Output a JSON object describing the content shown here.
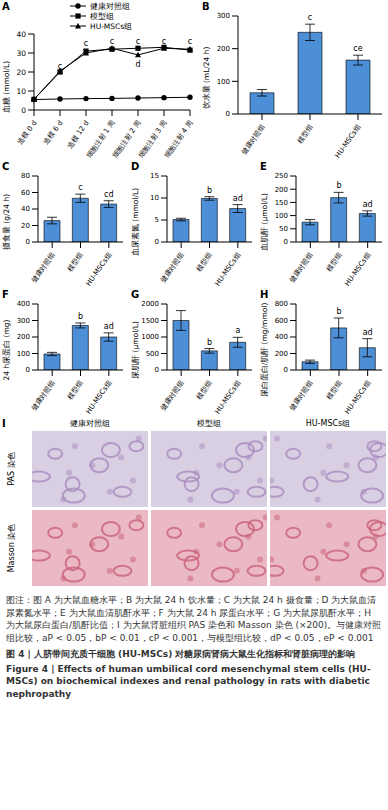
{
  "chart_data": [
    {
      "panel": "A",
      "type": "line",
      "ylabel": "血糖 (mmol/L)",
      "categories": [
        "造模 0 d",
        "造模 6 d",
        "造模 12 d",
        "细胞注射 1 周",
        "细胞注射 2 周",
        "细胞注射 3 周",
        "细胞注射 4 周"
      ],
      "series": [
        {
          "name": "健康对照组",
          "color": "#000000",
          "marker": "circle",
          "values": [
            5.5,
            5.8,
            6.0,
            6.1,
            6.3,
            6.5,
            6.7
          ]
        },
        {
          "name": "模型组",
          "color": "#000000",
          "marker": "square",
          "values": [
            5.6,
            20.0,
            31.0,
            32.0,
            32.5,
            33.0,
            31.5
          ]
        },
        {
          "name": "HU-MSCs组",
          "color": "#000000",
          "marker": "triangle",
          "values": [
            5.6,
            20.5,
            30.0,
            32.5,
            29.0,
            32.5,
            32.0
          ]
        }
      ],
      "annotations": [
        {
          "x": "造模 6 d",
          "y": 23,
          "text": "c"
        },
        {
          "x": "造模 12 d",
          "y": 35,
          "text": "c"
        },
        {
          "x": "细胞注射 1 周",
          "y": 36,
          "text": "c"
        },
        {
          "x": "细胞注射 2 周",
          "y": 36,
          "text": "c"
        },
        {
          "x": "细胞注射 3 周",
          "y": 36,
          "text": "c"
        },
        {
          "x": "细胞注射 4 周",
          "y": 36,
          "text": "c"
        },
        {
          "x": "细胞注射 2 周",
          "y": 24,
          "text": "d"
        }
      ],
      "ylim": [
        0,
        40
      ],
      "yticks": [
        0,
        10,
        20,
        30,
        40
      ],
      "legend": "top"
    },
    {
      "panel": "B",
      "type": "bar",
      "ylabel": "饮水量 (mL/24 h)",
      "categories": [
        "健康对照组",
        "模型组",
        "HU-MSCs组"
      ],
      "values": [
        65,
        250,
        165
      ],
      "errors": [
        10,
        25,
        15
      ],
      "color": "#4d8fd6",
      "annotations": [
        {
          "category": "模型组",
          "text": "c"
        },
        {
          "category": "HU-MSCs组",
          "text": "ce"
        }
      ],
      "ylim": [
        0,
        300
      ],
      "yticks": [
        0,
        100,
        200,
        300
      ]
    },
    {
      "panel": "C",
      "type": "bar",
      "ylabel": "摄食量 (g/24 h)",
      "categories": [
        "健康对照组",
        "模型组",
        "HU-MSCs组"
      ],
      "values": [
        26,
        53,
        46
      ],
      "errors": [
        4,
        5,
        4
      ],
      "color": "#4d8fd6",
      "annotations": [
        {
          "category": "模型组",
          "text": "c"
        },
        {
          "category": "HU-MSCs组",
          "text": "cd"
        }
      ],
      "ylim": [
        0,
        80
      ],
      "yticks": [
        0,
        20,
        40,
        60,
        80
      ]
    },
    {
      "panel": "D",
      "type": "bar",
      "ylabel": "血尿素氮 (mmol/L)",
      "categories": [
        "健康对照组",
        "模型组",
        "HU-MSCs组"
      ],
      "values": [
        5.1,
        9.9,
        7.6
      ],
      "errors": [
        0.3,
        0.4,
        0.9
      ],
      "color": "#4d8fd6",
      "annotations": [
        {
          "category": "模型组",
          "text": "b"
        },
        {
          "category": "HU-MSCs组",
          "text": "ad"
        }
      ],
      "ylim": [
        0,
        15
      ],
      "yticks": [
        0,
        5,
        10,
        15
      ]
    },
    {
      "panel": "E",
      "type": "bar",
      "ylabel": "血肌酐 (μmol/L)",
      "categories": [
        "健康对照组",
        "模型组",
        "HU-MSCs组"
      ],
      "values": [
        75,
        168,
        108
      ],
      "errors": [
        10,
        20,
        10
      ],
      "color": "#4d8fd6",
      "annotations": [
        {
          "category": "模型组",
          "text": "b"
        },
        {
          "category": "HU-MSCs组",
          "text": "ad"
        }
      ],
      "ylim": [
        0,
        250
      ],
      "yticks": [
        0,
        50,
        100,
        150,
        200,
        250
      ]
    },
    {
      "panel": "F",
      "type": "bar",
      "ylabel": "24 h尿蛋白 (mg)",
      "categories": [
        "健康对照组",
        "模型组",
        "HU-MSCs组"
      ],
      "values": [
        97,
        270,
        200
      ],
      "errors": [
        10,
        15,
        25
      ],
      "color": "#4d8fd6",
      "annotations": [
        {
          "category": "模型组",
          "text": "b"
        },
        {
          "category": "HU-MSCs组",
          "text": "ad"
        }
      ],
      "ylim": [
        0,
        400
      ],
      "yticks": [
        0,
        100,
        200,
        300,
        400
      ]
    },
    {
      "panel": "G",
      "type": "bar",
      "ylabel": "尿肌酐 (μmol/L)",
      "categories": [
        "健康对照组",
        "模型组",
        "HU-MSCs组"
      ],
      "values": [
        1500,
        580,
        840
      ],
      "errors": [
        300,
        70,
        150
      ],
      "color": "#4d8fd6",
      "annotations": [
        {
          "category": "模型组",
          "text": "b"
        },
        {
          "category": "HU-MSCs组",
          "text": "a"
        }
      ],
      "ylim": [
        0,
        2000
      ],
      "yticks": [
        0,
        500,
        1000,
        1500,
        2000
      ]
    },
    {
      "panel": "H",
      "type": "bar",
      "ylabel": "尿白蛋白/肌酐 (mg/mmol)",
      "categories": [
        "健康对照组",
        "模型组",
        "HU-MSCs组"
      ],
      "values": [
        100,
        510,
        270
      ],
      "errors": [
        20,
        120,
        110
      ],
      "color": "#4d8fd6",
      "annotations": [
        {
          "category": "模型组",
          "text": "b"
        },
        {
          "category": "HU-MSCs组",
          "text": "ad"
        }
      ],
      "ylim": [
        0,
        800
      ],
      "yticks": [
        0,
        200,
        400,
        600,
        800
      ]
    }
  ],
  "histology": {
    "panel": "I",
    "columns": [
      "健康对照组",
      "模型组",
      "HU-MSCs组"
    ],
    "rows": [
      "PAS 染色",
      "Masson 染色"
    ]
  },
  "caption": {
    "note": "图注：图 A 为大鼠血糖水平；B 为大鼠 24 h 饮水量；C 为大鼠 24 h 摄食量；D 为大鼠血清尿素氮水平；E 为大鼠血清肌酐水平；F 为大鼠 24 h 尿蛋白水平；G 为大鼠尿肌酐水平；H 为大鼠尿白蛋白/肌酐比值；I 为大鼠肾脏组织 PAS 染色和 Masson 染色 (×200)。与健康对照组比较，aP < 0.05，bP < 0.01，cP < 0.001，与模型组比较，dP < 0.05，eP < 0.001",
    "title_cn": "图 4 | 人脐带间充质干细胞 (HU-MSCs) 对糖尿病肾病大鼠生化指标和肾脏病理的影响",
    "title_en": "Figure 4 | Effects of human umbilical cord mesenchymal stem cells (HU-MSCs) on biochemical indexes and renal pathology in rats with diabetic nephropathy"
  }
}
